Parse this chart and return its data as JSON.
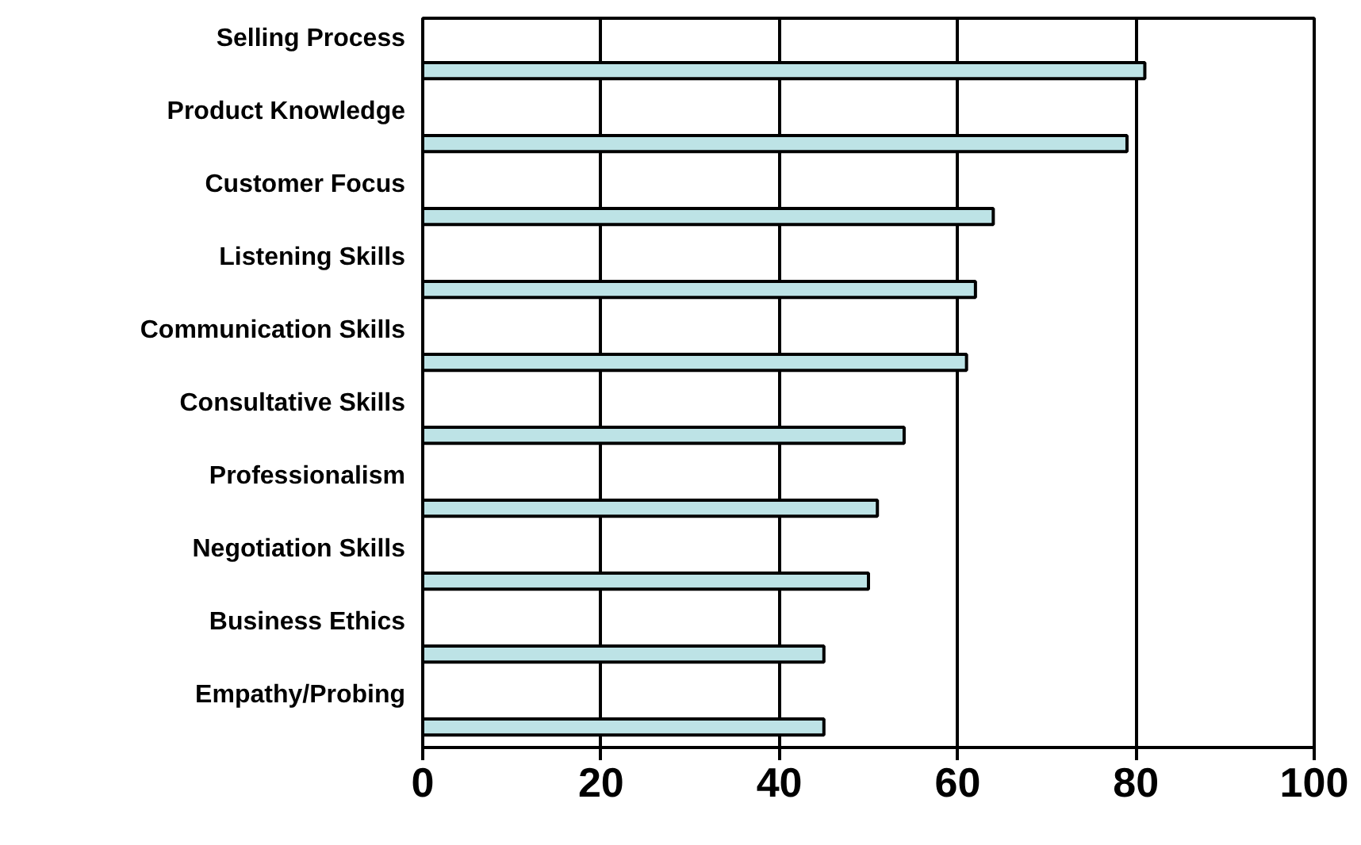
{
  "chart_data": {
    "type": "bar",
    "orientation": "horizontal",
    "categories": [
      "Selling Process",
      "Product Knowledge",
      "Customer Focus",
      "Listening Skills",
      "Communication Skills",
      "Consultative Skills",
      "Professionalism",
      "Negotiation Skills",
      "Business Ethics",
      "Empathy/Probing"
    ],
    "values": [
      81,
      79,
      64,
      62,
      61,
      54,
      51,
      50,
      45,
      45
    ],
    "color": "#bde3e6",
    "xlim": [
      0,
      100
    ],
    "xticks": [
      0,
      20,
      40,
      60,
      80,
      100
    ],
    "grid": "x"
  }
}
